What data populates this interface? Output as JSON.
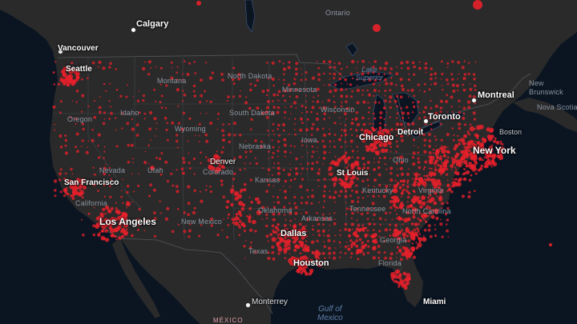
{
  "colors": {
    "ocean": "#0b1522",
    "land": "#2a2a2a",
    "border": "#52575e",
    "lake": "#0b1522",
    "dot": "#e8202a"
  },
  "cities": {
    "calgary": "Calgary",
    "vancouver": "Vancouver",
    "seattle": "Seattle",
    "montreal": "Montreal",
    "toronto": "Toronto",
    "detroit": "Detroit",
    "chicago": "Chicago",
    "new_york": "New York",
    "boston": "Boston",
    "denver": "Denver",
    "st_louis": "St Louis",
    "san_francisco": "San Francisco",
    "los_angeles": "Los Angeles",
    "dallas": "Dallas",
    "houston": "Houston",
    "miami": "Miami",
    "monterrey": "Monterrey"
  },
  "regions": {
    "ontario": "Ontario",
    "montana": "Montana",
    "north_dakota": "North Dakota",
    "minnesota": "Minnesota",
    "wisconsin": "Wisconsin",
    "oregon": "Oregon",
    "idaho": "Idaho",
    "wyoming": "Wyoming",
    "south_dakota": "South Dakota",
    "nebraska": "Nebraska",
    "iowa": "Iowa",
    "nevada": "Nevada",
    "utah": "Utah",
    "colorado": "Colorado",
    "kansas": "Kansas",
    "california": "California",
    "new_mexico": "New Mexico",
    "oklahoma": "Oklahoma",
    "arkansas": "Arkansas",
    "tennessee": "Tennessee",
    "kentucky": "Kentucky",
    "virginia": "Virginia",
    "north_carolina": "North Carolina",
    "georgia": "Georgia",
    "texas": "Texas",
    "florida": "Florida",
    "ohio": "Ohio",
    "new_brunswick_1": "New",
    "new_brunswick_2": "Brunswick",
    "nova_scotia": "Nova Scotia",
    "mexico": "MÉXICO"
  },
  "water": {
    "lake_superior_1": "Lake",
    "lake_superior_2": "Superior",
    "gulf_1": "Gulf of",
    "gulf_2": "Mexico"
  }
}
